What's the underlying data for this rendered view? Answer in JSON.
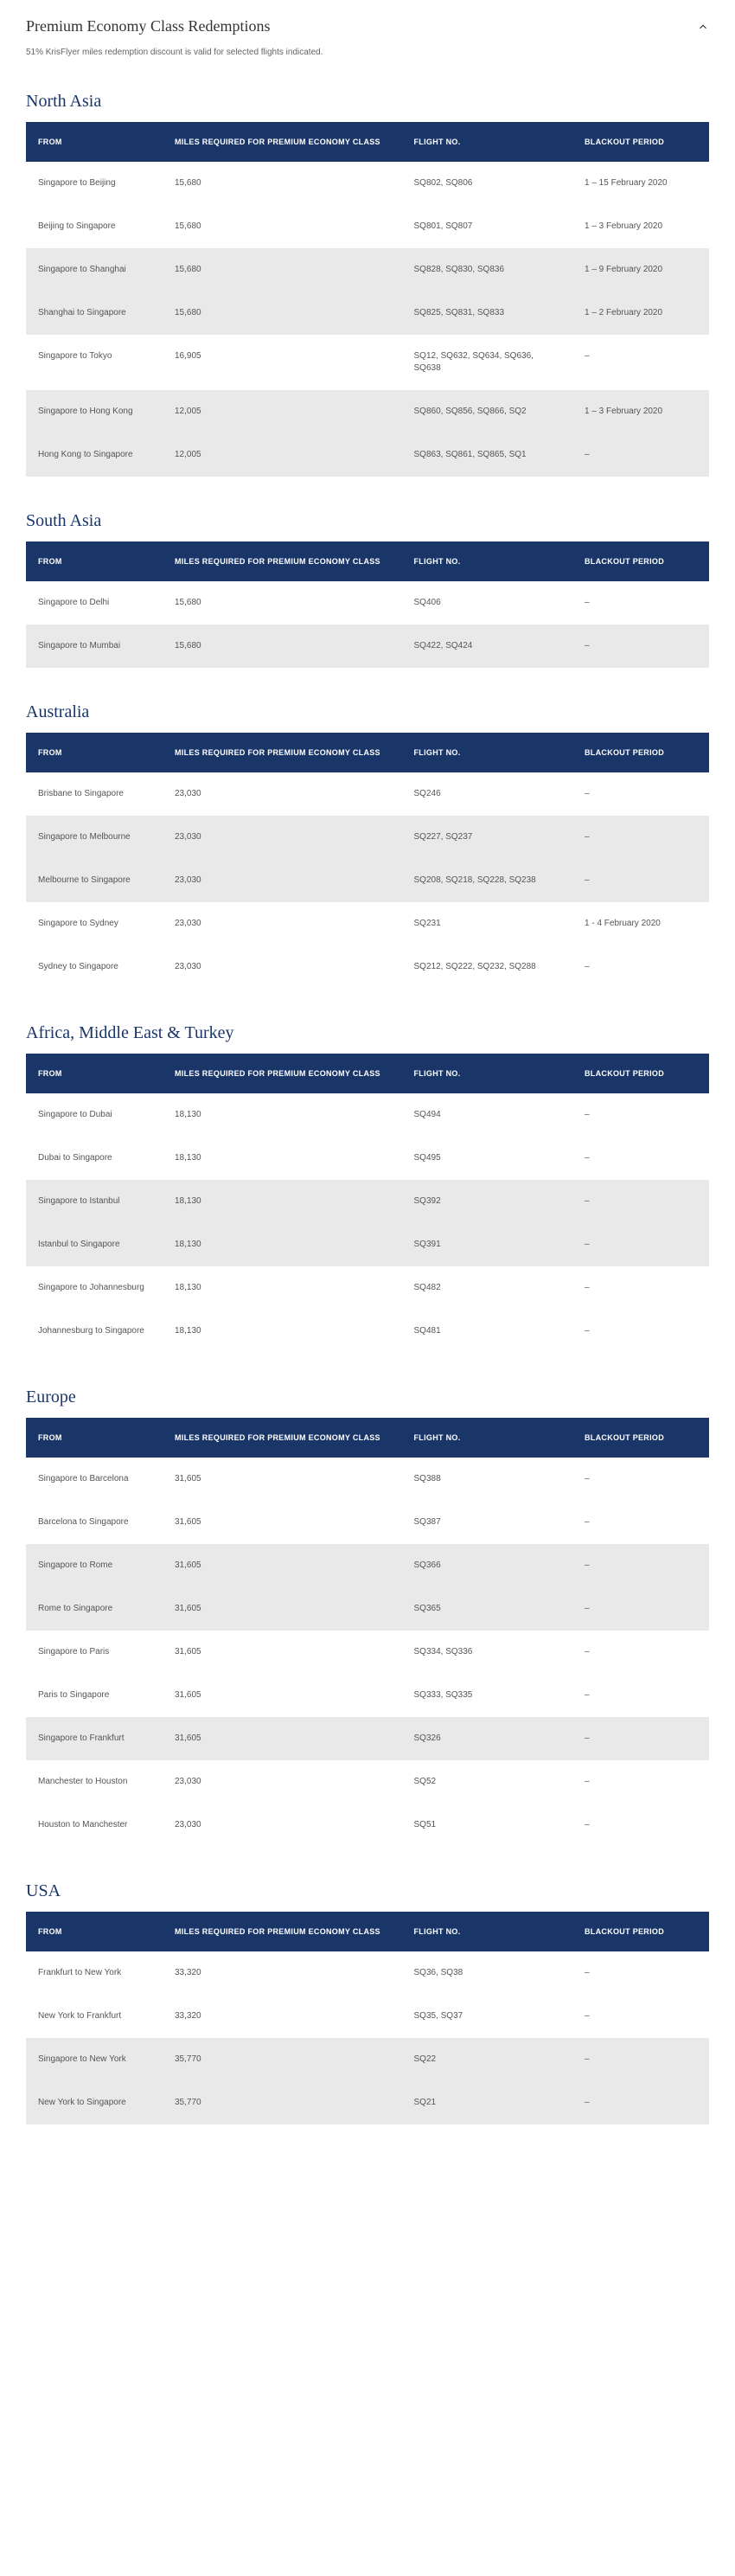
{
  "header": {
    "title": "Premium Economy Class Redemptions",
    "subtitle": "51% KrisFlyer miles redemption discount is valid for selected flights indicated."
  },
  "columns": {
    "from": "FROM",
    "miles": "MILES REQUIRED FOR PREMIUM ECONOMY CLASS",
    "flight": "FLIGHT NO.",
    "blackout": "BLACKOUT PERIOD"
  },
  "colors": {
    "header_bg": "#1a3668",
    "header_text": "#ffffff",
    "row_white": "#ffffff",
    "row_grey": "#e9e9e9",
    "region_title": "#1a3668"
  },
  "regions": [
    {
      "name": "North Asia",
      "rows": [
        {
          "from": "Singapore to Beijing",
          "miles": "15,680",
          "flight": "SQ802, SQ806",
          "blackout": "1 – 15 February 2020",
          "shade": "white"
        },
        {
          "from": "Beijing to Singapore",
          "miles": "15,680",
          "flight": "SQ801, SQ807",
          "blackout": "1 – 3 February 2020",
          "shade": "white"
        },
        {
          "from": "Singapore to Shanghai",
          "miles": "15,680",
          "flight": "SQ828, SQ830, SQ836",
          "blackout": "1 – 9 February 2020",
          "shade": "grey"
        },
        {
          "from": "Shanghai to Singapore",
          "miles": "15,680",
          "flight": "SQ825, SQ831, SQ833",
          "blackout": "1 – 2 February 2020",
          "shade": "grey"
        },
        {
          "from": "Singapore to Tokyo",
          "miles": "16,905",
          "flight": "SQ12, SQ632, SQ634, SQ636, SQ638",
          "blackout": "–",
          "shade": "white"
        },
        {
          "from": "Singapore to Hong Kong",
          "miles": "12,005",
          "flight": "SQ860, SQ856, SQ866, SQ2",
          "blackout": "1 – 3 February 2020",
          "shade": "grey"
        },
        {
          "from": "Hong Kong to Singapore",
          "miles": "12,005",
          "flight": "SQ863, SQ861, SQ865, SQ1",
          "blackout": "–",
          "shade": "grey"
        }
      ]
    },
    {
      "name": "South Asia",
      "rows": [
        {
          "from": "Singapore to Delhi",
          "miles": "15,680",
          "flight": "SQ406",
          "blackout": "–",
          "shade": "white"
        },
        {
          "from": "Singapore to Mumbai",
          "miles": "15,680",
          "flight": "SQ422, SQ424",
          "blackout": "–",
          "shade": "grey"
        }
      ]
    },
    {
      "name": "Australia",
      "rows": [
        {
          "from": "Brisbane to Singapore",
          "miles": "23,030",
          "flight": "SQ246",
          "blackout": "–",
          "shade": "white"
        },
        {
          "from": "Singapore to Melbourne",
          "miles": "23,030",
          "flight": "SQ227, SQ237",
          "blackout": "–",
          "shade": "grey"
        },
        {
          "from": "Melbourne to Singapore",
          "miles": "23,030",
          "flight": "SQ208, SQ218, SQ228, SQ238",
          "blackout": "–",
          "shade": "grey"
        },
        {
          "from": "Singapore to Sydney",
          "miles": "23,030",
          "flight": "SQ231",
          "blackout": "1 - 4 February 2020",
          "shade": "white"
        },
        {
          "from": "Sydney to Singapore",
          "miles": "23,030",
          "flight": "SQ212, SQ222, SQ232, SQ288",
          "blackout": "–",
          "shade": "white"
        }
      ]
    },
    {
      "name": "Africa, Middle East & Turkey",
      "rows": [
        {
          "from": "Singapore to Dubai",
          "miles": "18,130",
          "flight": "SQ494",
          "blackout": "–",
          "shade": "white"
        },
        {
          "from": "Dubai to Singapore",
          "miles": "18,130",
          "flight": "SQ495",
          "blackout": "–",
          "shade": "white"
        },
        {
          "from": "Singapore to Istanbul",
          "miles": "18,130",
          "flight": "SQ392",
          "blackout": "–",
          "shade": "grey"
        },
        {
          "from": "Istanbul to Singapore",
          "miles": "18,130",
          "flight": "SQ391",
          "blackout": "–",
          "shade": "grey"
        },
        {
          "from": "Singapore to Johannesburg",
          "miles": "18,130",
          "flight": "SQ482",
          "blackout": "–",
          "shade": "white"
        },
        {
          "from": "Johannesburg to Singapore",
          "miles": "18,130",
          "flight": "SQ481",
          "blackout": "–",
          "shade": "white"
        }
      ]
    },
    {
      "name": "Europe",
      "rows": [
        {
          "from": "Singapore to Barcelona",
          "miles": "31,605",
          "flight": "SQ388",
          "blackout": "–",
          "shade": "white"
        },
        {
          "from": "Barcelona to Singapore",
          "miles": "31,605",
          "flight": "SQ387",
          "blackout": "–",
          "shade": "white"
        },
        {
          "from": "Singapore to Rome",
          "miles": "31,605",
          "flight": "SQ366",
          "blackout": "–",
          "shade": "grey"
        },
        {
          "from": "Rome to Singapore",
          "miles": "31,605",
          "flight": "SQ365",
          "blackout": "–",
          "shade": "grey"
        },
        {
          "from": "Singapore to Paris",
          "miles": "31,605",
          "flight": "SQ334, SQ336",
          "blackout": "–",
          "shade": "white"
        },
        {
          "from": "Paris to Singapore",
          "miles": "31,605",
          "flight": "SQ333, SQ335",
          "blackout": "–",
          "shade": "white"
        },
        {
          "from": "Singapore to Frankfurt",
          "miles": "31,605",
          "flight": "SQ326",
          "blackout": "–",
          "shade": "grey"
        },
        {
          "from": "Manchester to Houston",
          "miles": "23,030",
          "flight": "SQ52",
          "blackout": "–",
          "shade": "white"
        },
        {
          "from": "Houston to Manchester",
          "miles": "23,030",
          "flight": "SQ51",
          "blackout": "–",
          "shade": "white"
        }
      ]
    },
    {
      "name": "USA",
      "rows": [
        {
          "from": "Frankfurt to New York",
          "miles": "33,320",
          "flight": "SQ36, SQ38",
          "blackout": "–",
          "shade": "white"
        },
        {
          "from": "New York to Frankfurt",
          "miles": "33,320",
          "flight": "SQ35, SQ37",
          "blackout": "–",
          "shade": "white"
        },
        {
          "from": "Singapore to New York",
          "miles": "35,770",
          "flight": "SQ22",
          "blackout": "–",
          "shade": "grey"
        },
        {
          "from": "New York to Singapore",
          "miles": "35,770",
          "flight": "SQ21",
          "blackout": "–",
          "shade": "grey"
        }
      ]
    }
  ]
}
